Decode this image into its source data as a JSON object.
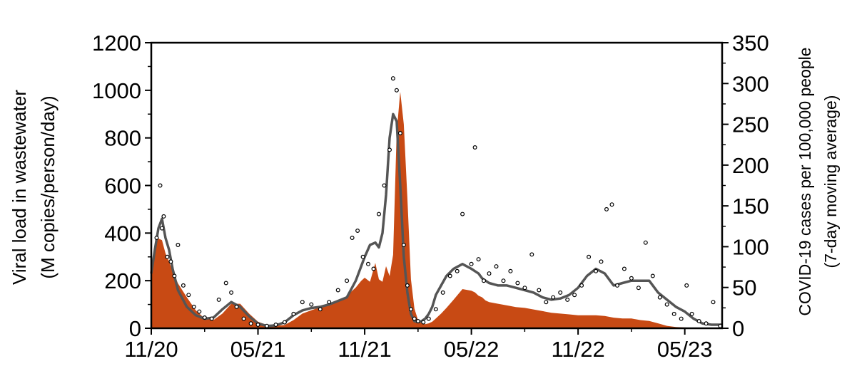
{
  "chart_data": {
    "type": "area",
    "title": "",
    "xlabel": "",
    "ylabel": [
      "Viral load in wastewater",
      "(M copies/person/day)"
    ],
    "y2label": [
      "COVID-19 cases per 100,000 people",
      "(7-day moving average)"
    ],
    "x_ticks": [
      "11/20",
      "05/21",
      "11/21",
      "05/22",
      "11/22",
      "05/23"
    ],
    "x_tick_values": [
      0,
      6,
      12,
      18,
      24,
      30
    ],
    "xlim": [
      0,
      32.1
    ],
    "x_unit": "months since 11/20",
    "ylim": [
      0,
      1200
    ],
    "y_ticks": [
      0,
      200,
      400,
      600,
      800,
      1000,
      1200
    ],
    "y2lim": [
      0,
      350
    ],
    "y2_ticks": [
      0,
      50,
      100,
      150,
      200,
      250,
      300,
      350
    ],
    "grid": false,
    "colors": {
      "cases_area": "#C84A14",
      "trend_line": "#555555",
      "points": "#000000"
    },
    "series": [
      {
        "kind": "area",
        "axis": "right",
        "x": [
          0,
          0.2,
          0.4,
          0.6,
          0.8,
          1.0,
          1.2,
          1.5,
          2,
          2.5,
          3,
          3.5,
          4,
          4.5,
          5,
          5.5,
          6,
          6.5,
          7,
          7.5,
          8,
          8.5,
          9,
          9.5,
          10,
          10.5,
          11,
          11.5,
          11.8,
          12,
          12.3,
          12.6,
          12.8,
          13,
          13.2,
          13.4,
          13.6,
          13.8,
          14,
          14.2,
          14.4,
          14.6,
          14.8,
          15,
          15.2,
          15.4,
          15.6,
          15.8,
          16,
          16.3,
          16.6,
          17,
          17.5,
          18,
          18.2,
          18.4,
          18.6,
          18.8,
          19,
          19.5,
          20,
          20.5,
          21,
          21.5,
          22,
          22.5,
          23,
          23.5,
          24,
          24.5,
          25,
          25.5,
          26,
          26.5,
          27,
          27.5,
          28,
          28.5,
          29,
          29.5,
          30,
          30.5,
          31,
          31.5,
          32,
          32.1
        ],
        "values": [
          60,
          100,
          110,
          108,
          92,
          82,
          70,
          55,
          38,
          22,
          12,
          10,
          18,
          30,
          30,
          18,
          8,
          4,
          3,
          4,
          10,
          18,
          22,
          26,
          28,
          32,
          40,
          50,
          58,
          62,
          57,
          80,
          60,
          57,
          76,
          64,
          90,
          240,
          290,
          250,
          160,
          60,
          24,
          10,
          6,
          5,
          6,
          8,
          12,
          18,
          25,
          35,
          48,
          46,
          44,
          40,
          38,
          34,
          32,
          30,
          28,
          26,
          25,
          23,
          21,
          19,
          18,
          17,
          16,
          16,
          16,
          15,
          13,
          12,
          12,
          10,
          9,
          6,
          3,
          1.5,
          1,
          0.5,
          0.2,
          0.1,
          0,
          0
        ]
      },
      {
        "kind": "line",
        "axis": "left",
        "x": [
          0,
          0.2,
          0.4,
          0.6,
          0.8,
          1.0,
          1.2,
          1.5,
          2,
          2.5,
          3,
          3.5,
          4,
          4.5,
          5,
          5.5,
          6,
          6.5,
          7,
          7.5,
          8,
          8.5,
          9,
          9.5,
          10,
          10.5,
          11,
          11.5,
          11.8,
          12,
          12.3,
          12.6,
          12.8,
          13,
          13.2,
          13.4,
          13.6,
          13.8,
          14,
          14.2,
          14.4,
          14.6,
          14.8,
          15,
          15.2,
          15.4,
          15.6,
          15.8,
          16,
          16.3,
          16.6,
          17,
          17.5,
          18,
          18.2,
          18.4,
          18.6,
          18.8,
          19,
          19.5,
          20,
          20.5,
          21,
          21.5,
          22,
          22.5,
          23,
          23.5,
          24,
          24.5,
          25,
          25.5,
          26,
          26.5,
          27,
          27.5,
          28,
          28.5,
          29,
          29.5,
          30,
          30.5,
          31,
          31.5,
          32,
          32.1
        ],
        "values": [
          230,
          330,
          420,
          460,
          380,
          330,
          250,
          160,
          90,
          55,
          40,
          45,
          80,
          110,
          90,
          50,
          20,
          10,
          12,
          25,
          55,
          75,
          85,
          90,
          100,
          115,
          130,
          200,
          260,
          300,
          350,
          360,
          340,
          400,
          560,
          800,
          900,
          870,
          600,
          300,
          150,
          60,
          30,
          25,
          30,
          40,
          60,
          90,
          140,
          180,
          220,
          250,
          270,
          250,
          240,
          230,
          210,
          200,
          190,
          180,
          180,
          170,
          160,
          150,
          130,
          120,
          125,
          140,
          170,
          220,
          250,
          230,
          180,
          190,
          200,
          200,
          200,
          150,
          120,
          90,
          70,
          40,
          20,
          15,
          15,
          15
        ]
      },
      {
        "kind": "scatter",
        "axis": "left",
        "x": [
          0.3,
          0.5,
          0.6,
          0.7,
          0.9,
          1.1,
          1.3,
          1.5,
          1.8,
          2.1,
          2.4,
          2.7,
          3.0,
          3.4,
          3.8,
          4.2,
          4.5,
          4.8,
          5.2,
          5.6,
          6.0,
          6.5,
          7.0,
          7.5,
          8.0,
          8.5,
          9.0,
          9.5,
          10.0,
          10.5,
          11.0,
          11.3,
          11.6,
          11.9,
          12.2,
          12.5,
          12.8,
          13.1,
          13.4,
          13.6,
          13.8,
          14.0,
          14.2,
          14.4,
          14.6,
          14.8,
          15.0,
          15.3,
          15.6,
          16.0,
          16.4,
          16.8,
          17.2,
          17.5,
          18.0,
          18.2,
          18.4,
          18.7,
          19.0,
          19.4,
          19.8,
          20.2,
          20.6,
          21.0,
          21.4,
          21.8,
          22.2,
          22.6,
          23.0,
          23.4,
          23.8,
          24.2,
          24.6,
          25.0,
          25.3,
          25.6,
          25.9,
          26.2,
          26.6,
          27.0,
          27.4,
          27.8,
          28.2,
          28.6,
          29.0,
          29.4,
          29.8,
          30.1,
          30.4,
          30.8,
          31.2,
          31.6,
          32.0
        ],
        "values": [
          380,
          600,
          420,
          470,
          300,
          280,
          220,
          350,
          180,
          140,
          90,
          70,
          45,
          40,
          120,
          190,
          150,
          90,
          40,
          20,
          15,
          10,
          15,
          25,
          60,
          110,
          100,
          80,
          110,
          160,
          200,
          380,
          410,
          300,
          270,
          250,
          480,
          600,
          750,
          1050,
          1000,
          820,
          350,
          180,
          80,
          40,
          30,
          25,
          40,
          80,
          150,
          220,
          240,
          480,
          270,
          760,
          290,
          200,
          230,
          260,
          200,
          240,
          190,
          170,
          310,
          160,
          110,
          130,
          150,
          120,
          140,
          180,
          300,
          240,
          280,
          500,
          520,
          180,
          250,
          210,
          170,
          360,
          220,
          130,
          100,
          60,
          40,
          180,
          60,
          30,
          20,
          110,
          10
        ]
      }
    ]
  }
}
